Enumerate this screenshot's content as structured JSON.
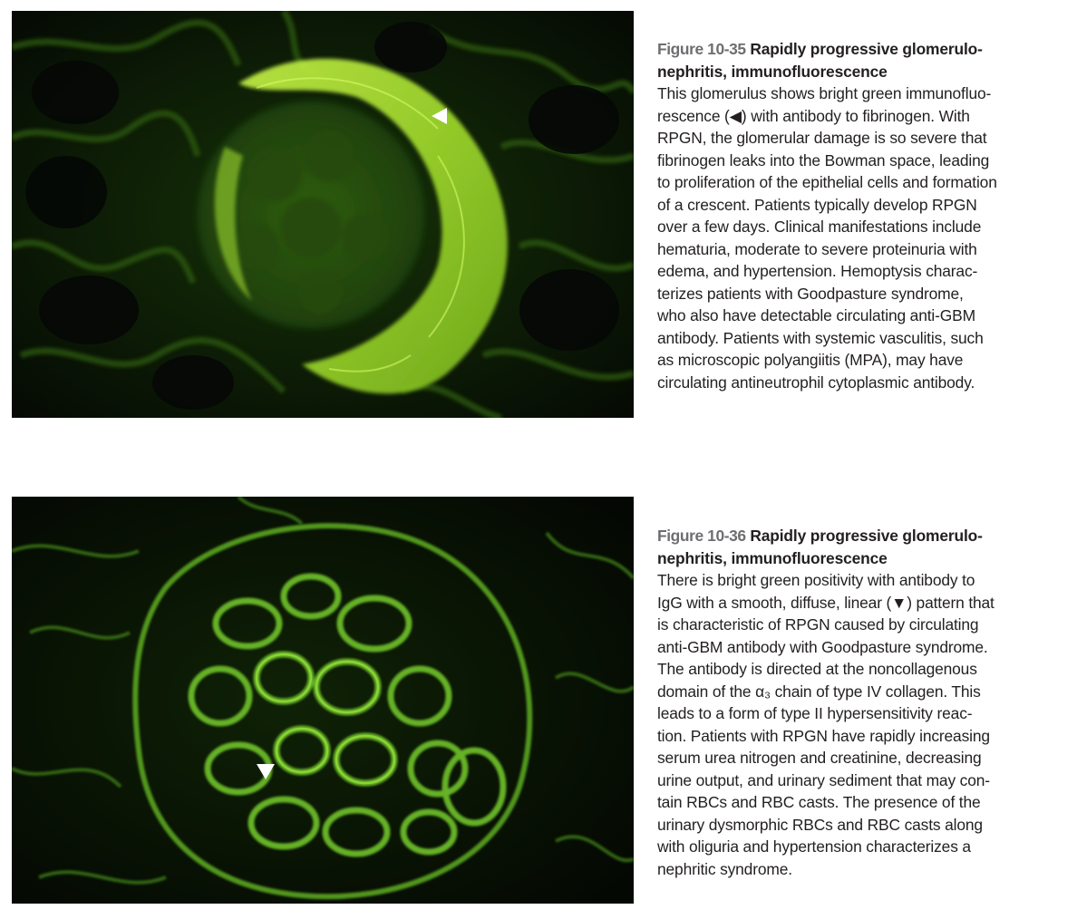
{
  "figures": [
    {
      "label": "Figure 10-35",
      "title_line1": "Rapidly progressive glomerulo-",
      "title_line2": "nephritis, immunofluorescence",
      "body_lines": [
        "This glomerulus shows bright green immunofluo-",
        "rescence (◀) with antibody to fibrinogen. With",
        "RPGN, the glomerular damage is so severe that",
        "fibrinogen leaks into the Bowman space, leading",
        "to proliferation of the epithelial cells and formation",
        "of a crescent. Patients typically develop RPGN",
        "over a few days. Clinical manifestations include",
        "hematuria, moderate to severe proteinuria with",
        "edema, and hypertension. Hemoptysis charac-",
        "terizes patients with Goodpasture syndrome,",
        "who also have detectable circulating anti-GBM",
        "antibody. Patients with systemic vasculitis, such",
        "as microscopic polyangiitis (MPA), may have",
        "circulating antineutrophil cytoplasmic antibody."
      ],
      "image_icon": "fluorescence-micrograph-crescent",
      "marker_icon": "arrowhead-left-icon"
    },
    {
      "label": "Figure 10-36",
      "title_line1": "Rapidly progressive glomerulo-",
      "title_line2": "nephritis, immunofluorescence",
      "body_lines": [
        "There is bright green positivity with antibody to",
        "IgG with a smooth, diffuse, linear (▼) pattern that",
        "is characteristic of RPGN caused by circulating",
        "anti-GBM antibody with Goodpasture syndrome.",
        "The antibody is directed at the noncollagenous",
        "domain of the α₃ chain of type IV collagen. This",
        "leads to a form of type II hypersensitivity reac-",
        "tion. Patients with RPGN have rapidly increasing",
        "serum urea nitrogen and creatinine, decreasing",
        "urine output, and urinary sediment that may con-",
        "tain RBCs and RBC casts. The presence of the",
        "urinary dysmorphic RBCs and RBC casts along",
        "with oliguria and hypertension characterizes a",
        "nephritic syndrome."
      ],
      "image_icon": "fluorescence-micrograph-linear",
      "marker_icon": "arrowhead-down-icon"
    }
  ],
  "colors": {
    "fluorescence_bright": "#a6e32a",
    "fluorescence_mid": "#4f9a1c",
    "fluorescence_dim": "#1d3d0b",
    "background_dark": "#050805",
    "label_gray": "#6d6e71",
    "text": "#231f20"
  }
}
